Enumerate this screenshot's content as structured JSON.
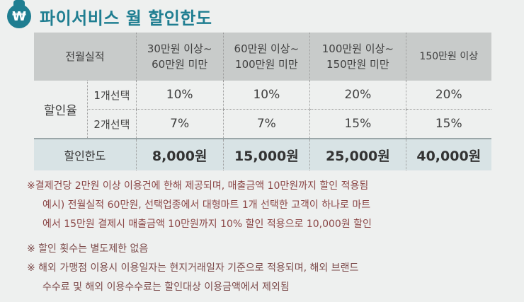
{
  "header": {
    "badge_symbol": "₩",
    "title": "파이서비스 월 할인한도"
  },
  "table": {
    "col0_header": "전월실적",
    "tiers": [
      {
        "line1": "30만원 이상~",
        "line2": "60만원 미만"
      },
      {
        "line1": "60만원 이상~",
        "line2": "100만원 미만"
      },
      {
        "line1": "100만원 이상~",
        "line2": "150만원 미만"
      },
      {
        "line1": "150만원 이상",
        "line2": ""
      }
    ],
    "rate_label": "할인율",
    "row1": {
      "label": "1개선택",
      "values": [
        "10%",
        "10%",
        "20%",
        "20%"
      ]
    },
    "row2": {
      "label": "2개선택",
      "values": [
        "7%",
        "7%",
        "15%",
        "15%"
      ]
    },
    "limit": {
      "label": "할인한도",
      "values": [
        "8,000원",
        "15,000원",
        "25,000원",
        "40,000원"
      ]
    }
  },
  "notes": {
    "line1": "※결제건당 2만원 이상 이용건에 한해 제공되며, 매출금액 10만원까지 할인 적용됨",
    "line2": "예시) 전월실적 60만원, 선택업종에서 대형마트 1개 선택한 고객이 하나로 마트",
    "line3": "에서 15만원 결제시 매출금액 10만원까지 10% 할인 적용으로 10,000원 할인",
    "line4": "※ 할인 횟수는 별도제한 없음",
    "line5": "※ 해외 가맹점 이용시 이용일자는 현지거래일자 기준으로 적용되며, 해외 브랜드",
    "line6": "수수료 및 해외 이용수수료는 할인대상 이용금액에서 제외됨"
  }
}
